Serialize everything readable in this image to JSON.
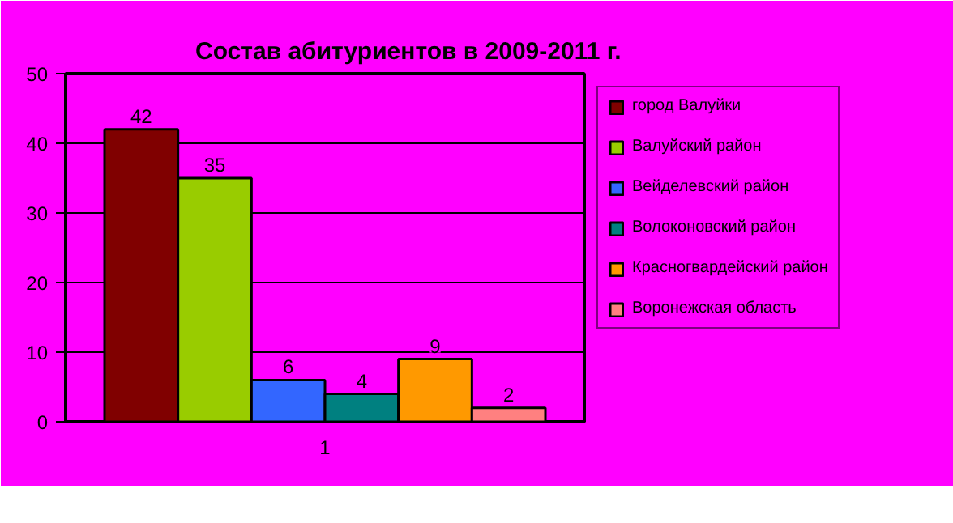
{
  "chart_data": {
    "type": "bar",
    "title": "Состав абитуриентов в 2009-2011 г.",
    "categories": [
      "1"
    ],
    "series": [
      {
        "name": "город Валуйки",
        "color": "#800000",
        "values": [
          42
        ]
      },
      {
        "name": "Валуйский район",
        "color": "#99cc00",
        "values": [
          35
        ]
      },
      {
        "name": "Вейделевский район",
        "color": "#3366ff",
        "values": [
          6
        ]
      },
      {
        "name": "Волоконовский район",
        "color": "#008080",
        "values": [
          4
        ]
      },
      {
        "name": "Красногвардейский район",
        "color": "#ff9900",
        "values": [
          9
        ]
      },
      {
        "name": "Воронежская область",
        "color": "#ff8080",
        "values": [
          2
        ]
      }
    ],
    "ylim": [
      0,
      50
    ],
    "yticks": [
      0,
      10,
      20,
      30,
      40,
      50
    ],
    "grid": "y",
    "legend": "right",
    "data_labels": true
  }
}
